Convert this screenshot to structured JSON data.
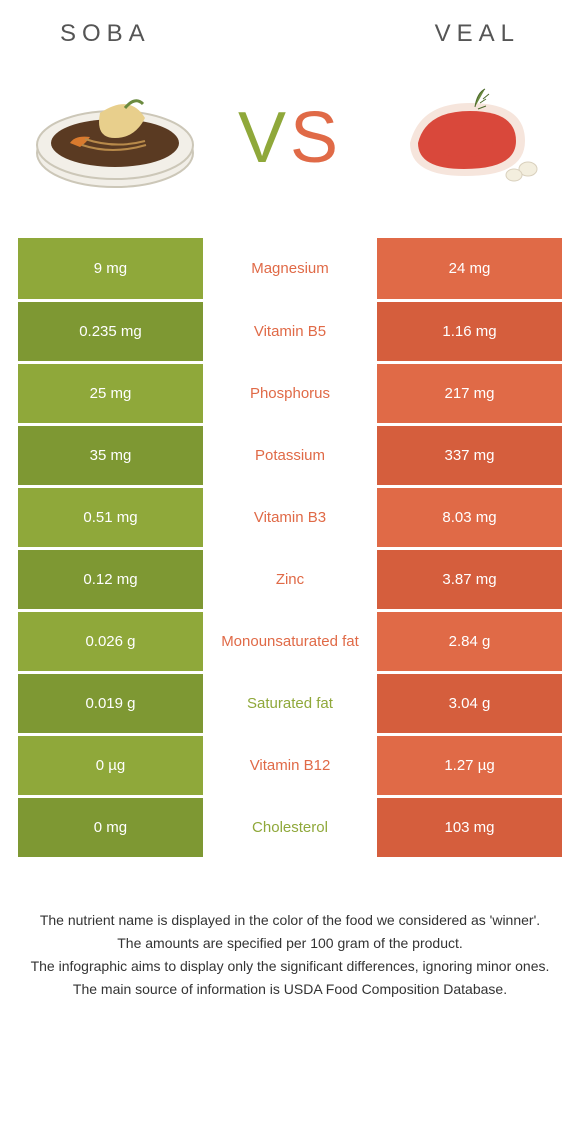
{
  "header": {
    "left_title": "SOBA",
    "right_title": "VEAL"
  },
  "vs": {
    "v": "V",
    "s": "S"
  },
  "palette": {
    "soba_color": "#8fa83a",
    "veal_color": "#e06a47",
    "soba_dark": "#7e9833",
    "veal_dark": "#d55e3d",
    "white": "#ffffff"
  },
  "nutrients": [
    {
      "name": "Magnesium",
      "soba": "9 mg",
      "veal": "24 mg",
      "winner": "veal"
    },
    {
      "name": "Vitamin B5",
      "soba": "0.235 mg",
      "veal": "1.16 mg",
      "winner": "veal"
    },
    {
      "name": "Phosphorus",
      "soba": "25 mg",
      "veal": "217 mg",
      "winner": "veal"
    },
    {
      "name": "Potassium",
      "soba": "35 mg",
      "veal": "337 mg",
      "winner": "veal"
    },
    {
      "name": "Vitamin B3",
      "soba": "0.51 mg",
      "veal": "8.03 mg",
      "winner": "veal"
    },
    {
      "name": "Zinc",
      "soba": "0.12 mg",
      "veal": "3.87 mg",
      "winner": "veal"
    },
    {
      "name": "Monounsaturated fat",
      "soba": "0.026 g",
      "veal": "2.84 g",
      "winner": "veal"
    },
    {
      "name": "Saturated fat",
      "soba": "0.019 g",
      "veal": "3.04 g",
      "winner": "soba"
    },
    {
      "name": "Vitamin B12",
      "soba": "0 µg",
      "veal": "1.27 µg",
      "winner": "veal"
    },
    {
      "name": "Cholesterol",
      "soba": "0 mg",
      "veal": "103 mg",
      "winner": "soba"
    }
  ],
  "footer": {
    "line1": "The nutrient name is displayed in the color of the food we considered as 'winner'.",
    "line2": "The amounts are specified per 100 gram of the product.",
    "line3": "The infographic aims to display only the significant differences, ignoring minor ones.",
    "line4": "The main source of information is USDA Food Composition Database."
  }
}
